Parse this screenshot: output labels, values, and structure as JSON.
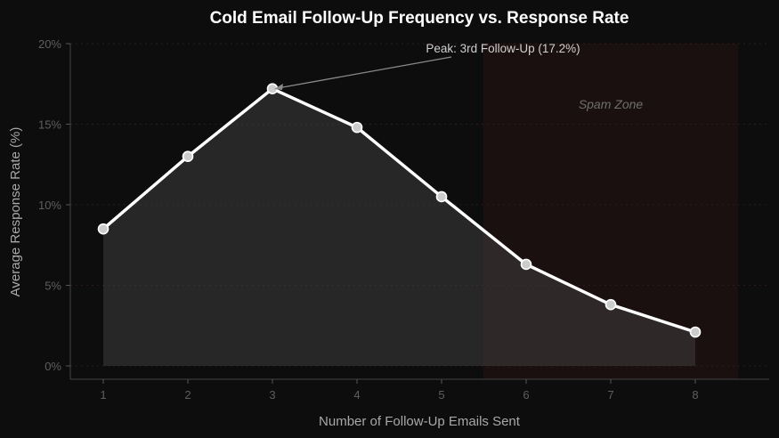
{
  "chart_data": {
    "type": "line",
    "title": "Cold Email Follow-Up Frequency vs. Response Rate",
    "xlabel": "Number of Follow-Up Emails Sent",
    "ylabel": "Average Response Rate (%)",
    "x": [
      1,
      2,
      3,
      4,
      5,
      6,
      7,
      8
    ],
    "series": [
      {
        "name": "Average Response Rate",
        "values": [
          8.5,
          13.0,
          17.2,
          14.8,
          10.5,
          6.3,
          3.8,
          2.1
        ]
      }
    ],
    "ylim": [
      0,
      20
    ],
    "yticks": [
      "0%",
      "5%",
      "10%",
      "15%",
      "20%"
    ],
    "xticks": [
      "1",
      "2",
      "3",
      "4",
      "5",
      "6",
      "7",
      "8"
    ],
    "grid": true,
    "annotations": [
      {
        "text": "Peak: 3rd Follow-Up (17.2%)",
        "x": 3,
        "y": 17.2
      },
      {
        "text": "Spam Zone",
        "region": [
          5.5,
          8.5
        ]
      }
    ],
    "colors": {
      "background": "#0d0d0d",
      "line": "#ffffff",
      "marker": "#cccccc",
      "fill": "#1f1f1f",
      "spam_zone": "#1a1010"
    }
  }
}
